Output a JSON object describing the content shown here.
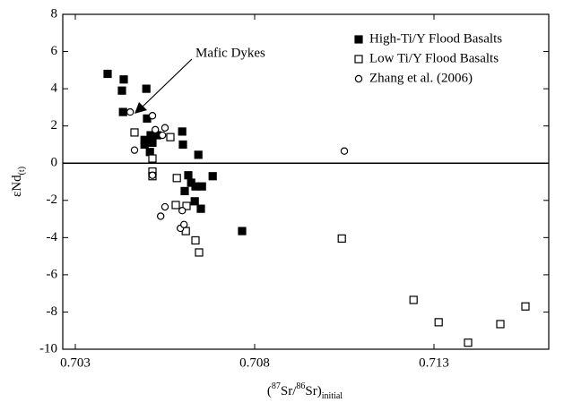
{
  "chart_data": {
    "type": "scatter",
    "annotation": {
      "text": "Mafic Dykes",
      "x": 0.7045,
      "y": 2.7
    },
    "x_label": {
      "open": "(",
      "sup1": "87",
      "mid": "Sr/",
      "sup2": "86",
      "close": "Sr)",
      "sub": "initial"
    },
    "y_label": {
      "main": "εNd",
      "sub": "(t)"
    },
    "xlim": [
      0.70265,
      0.7162
    ],
    "xticks": [
      0.703,
      0.708,
      0.713
    ],
    "ylim": [
      -10,
      8
    ],
    "yticks": [
      -10,
      -8,
      -6,
      -4,
      -2,
      0,
      2,
      4,
      6,
      8
    ],
    "reference_line": 0,
    "legend": "upper right",
    "series": [
      {
        "name": "High-Ti/Y Flood Basalts",
        "marker": "square",
        "filled": true,
        "color": "#000000",
        "x": [
          0.7039,
          0.70435,
          0.7043,
          0.70498,
          0.70433,
          0.705,
          0.70493,
          0.70493,
          0.7051,
          0.70528,
          0.70508,
          0.70515,
          0.70598,
          0.706,
          0.70643,
          0.70615,
          0.70623,
          0.70605,
          0.70635,
          0.70653,
          0.70683,
          0.70633,
          0.7065,
          0.70765
        ],
        "values": [
          4.8,
          4.5,
          3.9,
          4.0,
          2.75,
          2.4,
          1.25,
          1.0,
          1.5,
          1.5,
          0.6,
          1.1,
          1.7,
          1.0,
          0.45,
          -0.65,
          -1.05,
          -1.5,
          -1.25,
          -1.25,
          -0.7,
          -2.05,
          -2.45,
          -3.65
        ]
      },
      {
        "name": "Low Ti/Y Flood Basalts",
        "marker": "square",
        "filled": false,
        "color": "#000000",
        "x": [
          0.70465,
          0.70515,
          0.70515,
          0.70515,
          0.70565,
          0.70583,
          0.7058,
          0.7061,
          0.70608,
          0.70635,
          0.70645,
          0.71043,
          0.71243,
          0.71313,
          0.71395,
          0.71485,
          0.71555
        ],
        "values": [
          1.65,
          0.25,
          -0.45,
          -0.7,
          1.4,
          -0.8,
          -2.25,
          -2.3,
          -3.65,
          -4.15,
          -4.8,
          -4.05,
          -7.35,
          -8.55,
          -9.65,
          -8.65,
          -7.7
        ]
      },
      {
        "name": "Zhang et al. (2006)",
        "marker": "circle",
        "filled": false,
        "color": "#000000",
        "x": [
          0.70453,
          0.70465,
          0.70515,
          0.70523,
          0.70543,
          0.7055,
          0.70515,
          0.7055,
          0.70538,
          0.70598,
          0.70593,
          0.70603,
          0.7105
        ],
        "values": [
          2.75,
          0.7,
          2.55,
          1.8,
          1.5,
          1.9,
          -0.65,
          -2.35,
          -2.85,
          -2.55,
          -3.5,
          -3.3,
          0.65
        ]
      }
    ]
  }
}
